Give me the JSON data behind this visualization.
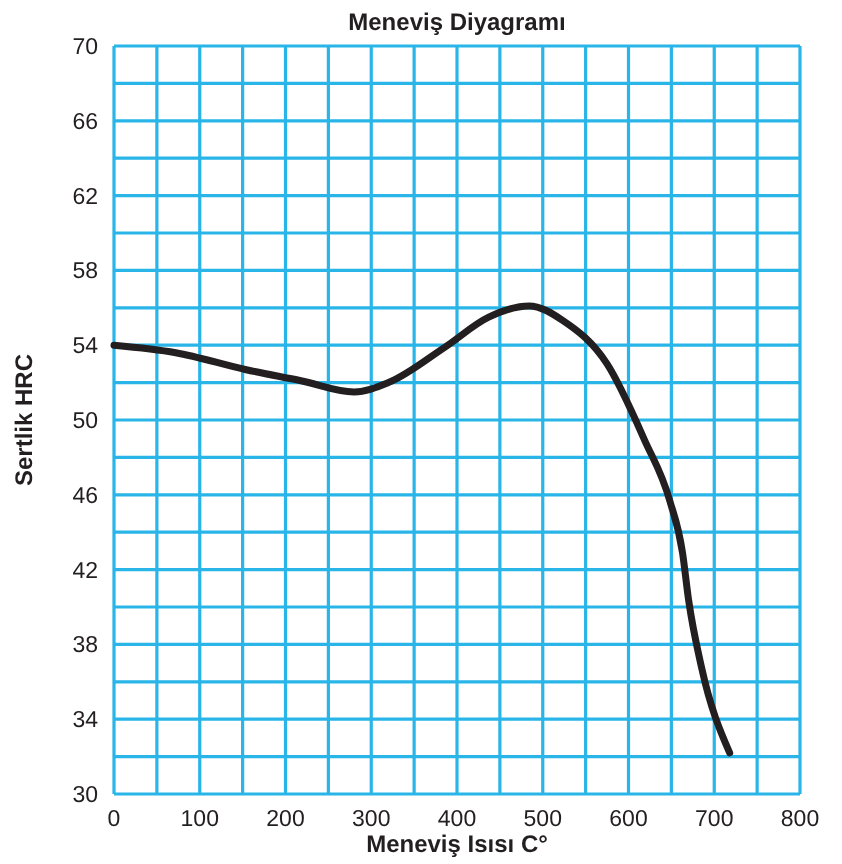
{
  "chart_data": {
    "type": "line",
    "title": "Meneviş Diyagramı",
    "xlabel": "Meneviş Isısı C°",
    "ylabel": "Sertlik HRC",
    "x": [
      0,
      72,
      153,
      218,
      280,
      320,
      386,
      437,
      484,
      524,
      575,
      619,
      648,
      663,
      670,
      685,
      718
    ],
    "series": [
      {
        "color": "#231f20",
        "values": [
          54.0,
          53.6,
          52.7,
          52.1,
          51.5,
          52.0,
          53.9,
          55.5,
          56.1,
          55.3,
          53.0,
          48.9,
          45.7,
          42.9,
          40.4,
          36.8,
          32.2
        ]
      }
    ],
    "xlim": [
      0,
      800
    ],
    "xticks": [
      0,
      {
        "value": 50,
        "label": null
      },
      100,
      {
        "value": 150,
        "label": null
      },
      200,
      {
        "value": 250,
        "label": null
      },
      300,
      {
        "value": 350,
        "label": null
      },
      400,
      {
        "value": 450,
        "label": null
      },
      500,
      {
        "value": 550,
        "label": null
      },
      600,
      {
        "value": 650,
        "label": null
      },
      700,
      {
        "value": 750,
        "label": null
      },
      800
    ],
    "ylim": [
      30,
      70
    ],
    "yticks": [
      30,
      {
        "value": 32,
        "label": null
      },
      {
        "value": 34,
        "label": "34"
      },
      {
        "value": 36,
        "label": null
      },
      38,
      {
        "value": 40,
        "label": null
      },
      42,
      {
        "value": 44,
        "label": null
      },
      46,
      {
        "value": 48,
        "label": null
      },
      50,
      {
        "value": 52,
        "label": null
      },
      54,
      {
        "value": 56,
        "label": null
      },
      58,
      {
        "value": 60,
        "label": null
      },
      62,
      {
        "value": 64,
        "label": null
      },
      66,
      {
        "value": 68,
        "label": null
      },
      70
    ],
    "grid": true,
    "marker": "none",
    "line_style": "solid"
  }
}
